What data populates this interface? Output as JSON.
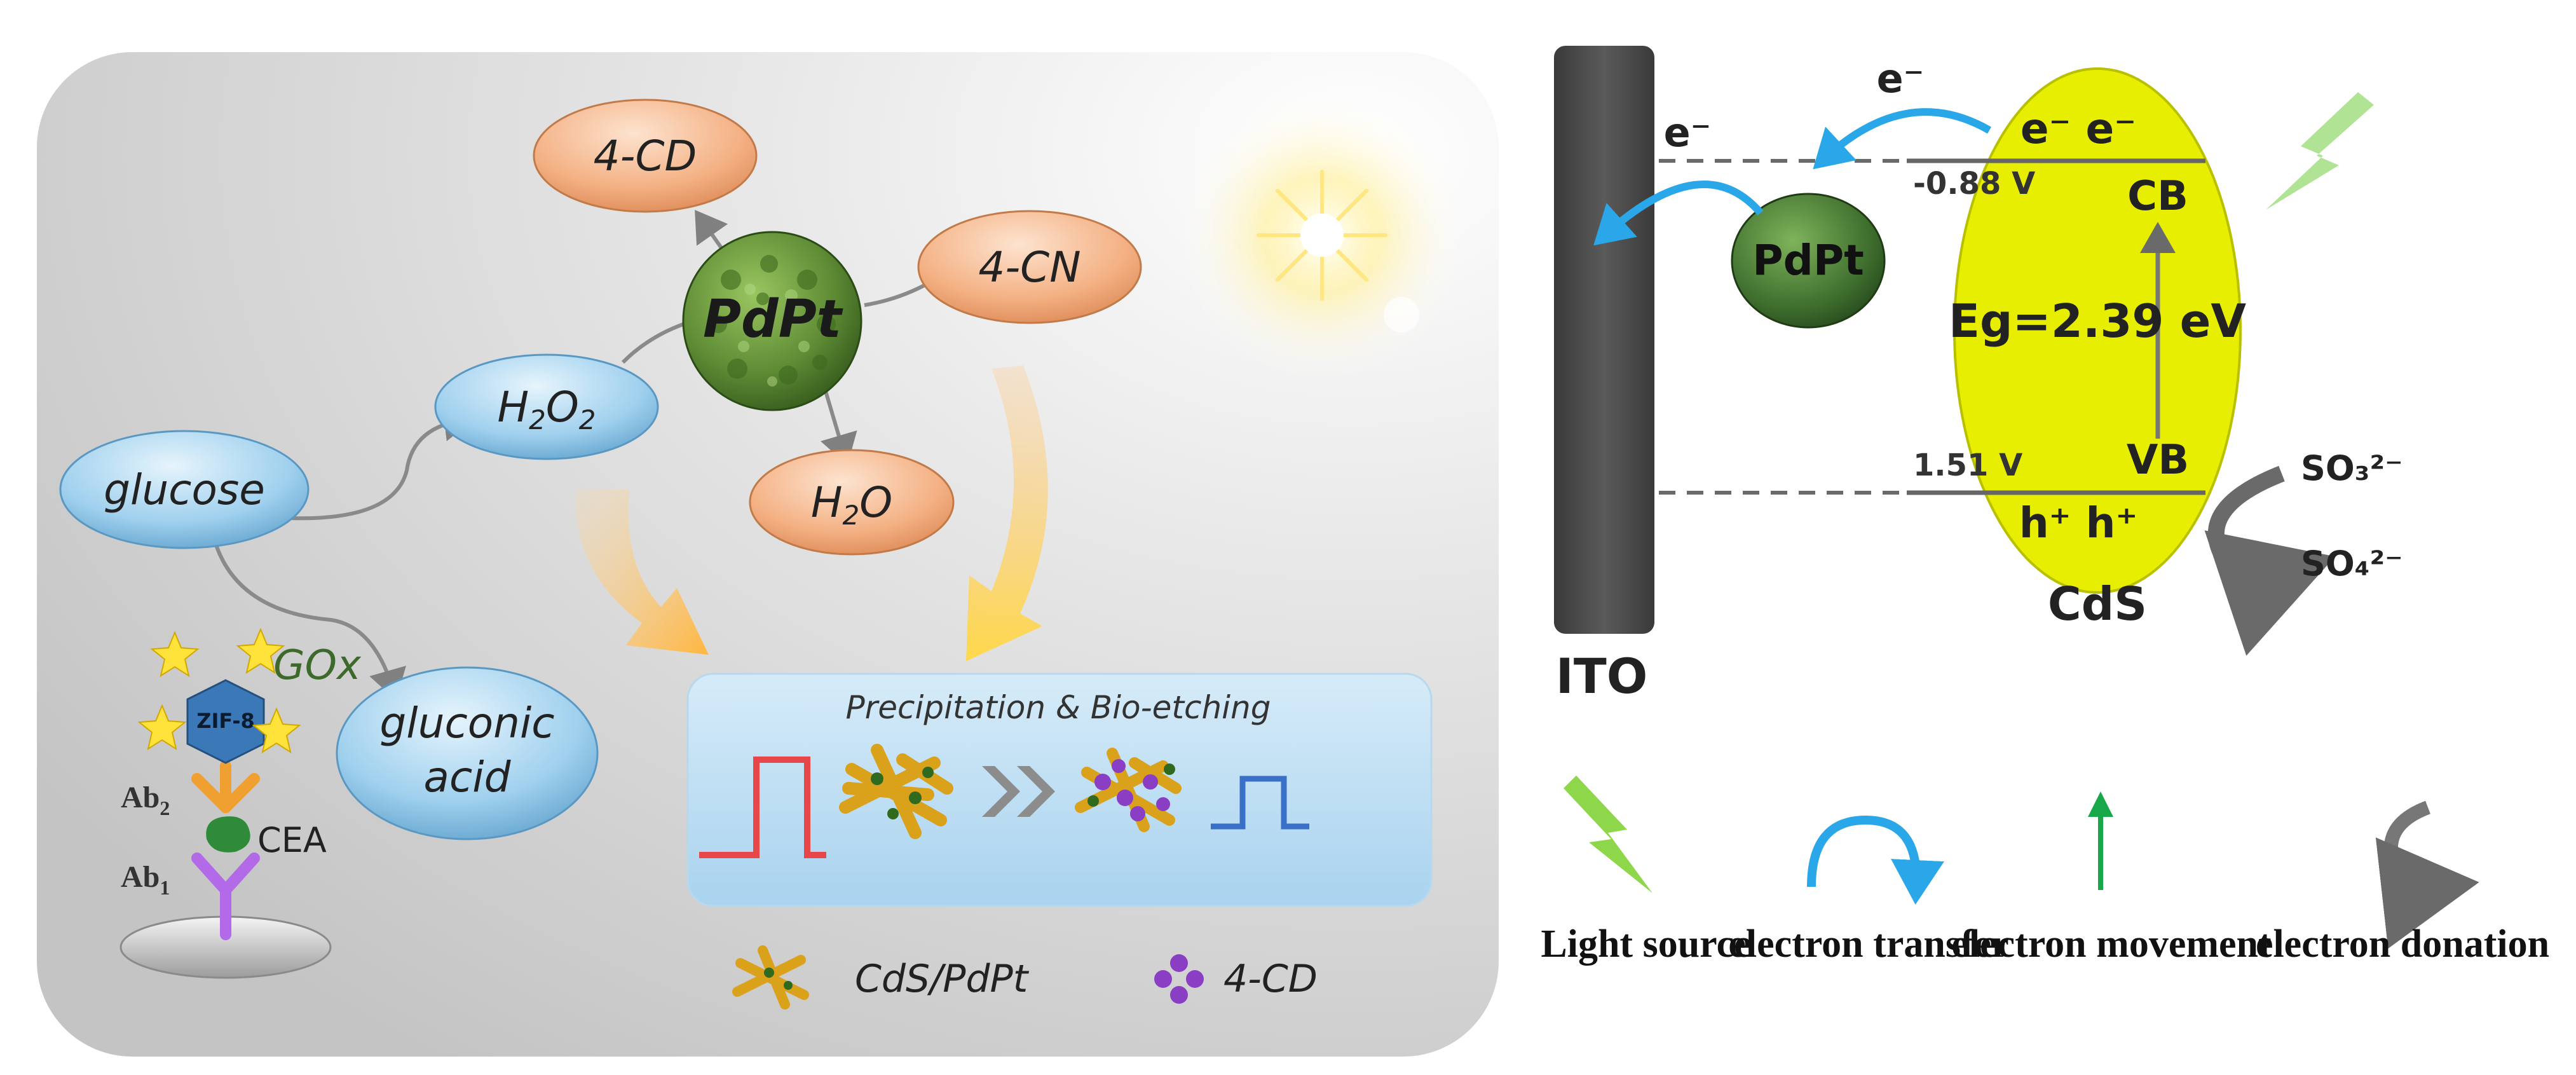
{
  "left_panel": {
    "nodes": {
      "cd_top": "4-CD",
      "cn": "4-CN",
      "pdpt": "PdPt",
      "h2o2": "H2O2",
      "h2o": "H2O",
      "glucose": "glucose",
      "gluconic_line1": "gluconic",
      "gluconic_line2": "acid"
    },
    "enzyme_label": "GOx",
    "zif_label": "ZIF-8",
    "ab2_label": "Ab2",
    "ab1_label": "Ab1",
    "cea_label": "CEA",
    "precipitation_title": "Precipitation & Bio-etching",
    "legend": {
      "cds_pdpt": "CdS/PdPt",
      "cd": "4-CD"
    }
  },
  "right_panel": {
    "electrode_label": "ITO",
    "particle_label": "PdPt",
    "semiconductor_label": "CdS",
    "electron_symbol": "e⁻",
    "cb_electrons": "e⁻ e⁻",
    "vb_holes": "h⁺ h⁺",
    "cb_label": "CB",
    "vb_label": "VB",
    "cb_potential": "-0.88 V",
    "vb_potential": "1.51 V",
    "bandgap": "Eg=2.39 eV",
    "donor_in": "SO₃²⁻",
    "donor_out": "SO₄²⁻",
    "legend": [
      {
        "label": "Light source",
        "icon": "lightning-icon",
        "color": "#8ed64a"
      },
      {
        "label": "electron transfer",
        "icon": "curved-arrow-icon",
        "color": "#2aa7e8"
      },
      {
        "label": "electron movement",
        "icon": "up-arrow-icon",
        "color": "#18a84a"
      },
      {
        "label": "electron donation",
        "icon": "return-arrow-icon",
        "color": "#777777"
      }
    ]
  },
  "colors": {
    "orange_node": "#f2a878",
    "blue_node": "#8cc6ea",
    "cds_yellow": "#e8ee00",
    "pdpt_green": "#4a7a2a",
    "electron_arrow": "#2aa7e8",
    "ito_gray": "#4a4a4a"
  }
}
